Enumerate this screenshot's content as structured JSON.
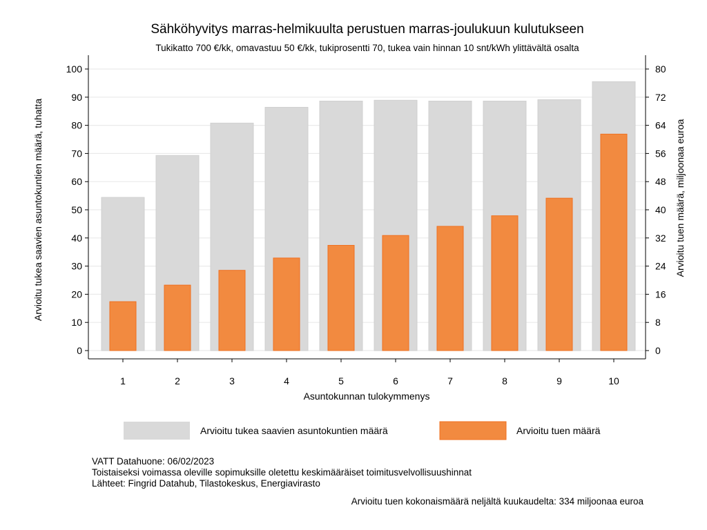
{
  "chart_data": {
    "type": "bar",
    "title": "Sähköhyvitys marras-helmikuulta perustuen marras-joulukuun kulutukseen",
    "subtitle": "Tukikatto 700 €/kk, omavastuu 50 €/kk, tukiprosentti 70, tukea vain hinnan 10 snt/kWh ylittävältä osalta",
    "xlabel": "Asuntokunnan tulokymmenys",
    "ylabel_left": "Arvioitu tukea saavien asuntokuntien määrä, tuhatta",
    "ylabel_right": "Arvioitu tuen määrä, miljoonaa euroa",
    "categories": [
      "1",
      "2",
      "3",
      "4",
      "5",
      "6",
      "7",
      "8",
      "9",
      "10"
    ],
    "ylim_left": [
      0,
      100
    ],
    "yticks_left": [
      0,
      10,
      20,
      30,
      40,
      50,
      60,
      70,
      80,
      90,
      100
    ],
    "ylim_right": [
      0,
      80
    ],
    "yticks_right": [
      0,
      8,
      16,
      24,
      32,
      40,
      48,
      56,
      64,
      72,
      80
    ],
    "grid": true,
    "legend_position": "bottom",
    "series": [
      {
        "name": "Arvioitu tukea saavien asuntokuntien määrä",
        "axis": "left",
        "color": "#d9d9d9",
        "values": [
          54.4,
          69.3,
          80.8,
          86.4,
          88.6,
          88.9,
          88.6,
          88.6,
          89.1,
          95.5
        ]
      },
      {
        "name": "Arvioitu tuen määrä",
        "axis": "right",
        "color": "#f28a40",
        "values": [
          13.9,
          18.6,
          22.8,
          26.3,
          29.9,
          32.7,
          35.3,
          38.3,
          43.3,
          61.5
        ]
      }
    ]
  },
  "notes": {
    "line1": "VATT Datahuone: 06/02/2023",
    "line2": "Toistaiseksi voimassa oleville sopimuksille oletettu keskimääräiset toimitusvelvollisuushinnat",
    "line3": "Lähteet: Fingrid Datahub, Tilastokeskus, Energiavirasto",
    "total": "Arvioitu tuen kokonaismäärä neljältä kuukaudelta: 334 miljoonaa euroa"
  }
}
